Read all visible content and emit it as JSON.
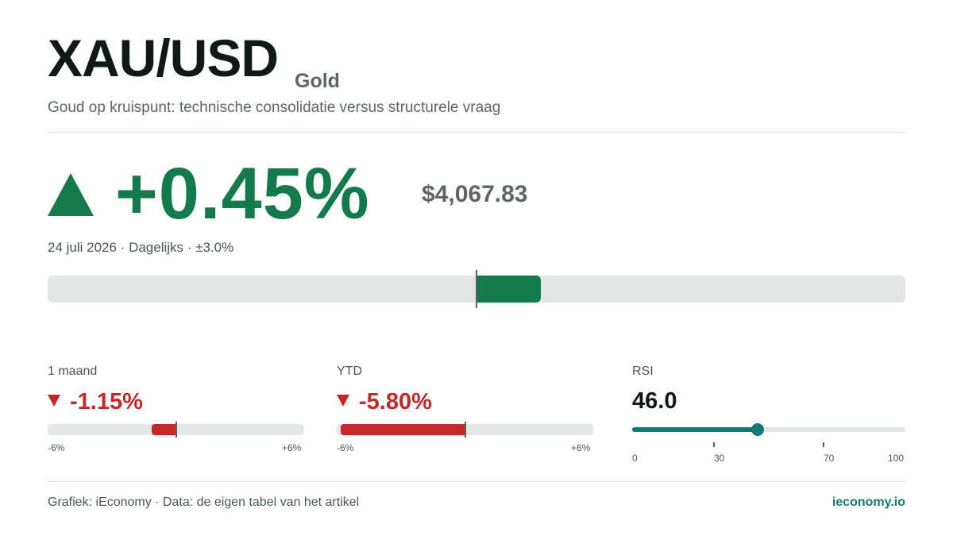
{
  "header": {
    "title": "XAU/USD",
    "asset": "Gold",
    "subtitle": "Goud op kruispunt: technische consolidatie versus structurele vraag"
  },
  "summary": {
    "change": "+0.45%",
    "price": "$4,067.83",
    "meta": "24 juli 2026 · Dagelijks · ±3.0%"
  },
  "chart_data": [
    {
      "type": "bar",
      "name_shown": "",
      "values": [
        0.45
      ],
      "xlim": [
        -3.0,
        3.0
      ],
      "unit": "%",
      "color": "#137a4c"
    },
    {
      "type": "bar",
      "label": "1 maand",
      "display": "-1.15%",
      "values": [
        -1.15
      ],
      "xlim": [
        -6,
        6
      ],
      "tick_min": "-6%",
      "tick_max": "+6%",
      "color": "#c62828"
    },
    {
      "type": "bar",
      "label": "YTD",
      "display": "-5.80%",
      "values": [
        -5.8
      ],
      "xlim": [
        -6,
        6
      ],
      "tick_min": "-6%",
      "tick_max": "+6%",
      "color": "#c62828"
    },
    {
      "type": "gauge",
      "label": "RSI",
      "display": "46.0",
      "values": [
        46.0
      ],
      "xlim": [
        0,
        100
      ],
      "ticks": [
        "0",
        "30",
        "70",
        "100"
      ],
      "tick_values": [
        0,
        30,
        70,
        100
      ],
      "color": "#117a73"
    }
  ],
  "footer": {
    "source": "Grafiek: iEconomy · Data: de eigen tabel van het artikel",
    "brand": "ieconomy.io"
  },
  "colors": {
    "positive": "#137a4c",
    "negative": "#c62828",
    "accent": "#117a73"
  },
  "icons": {
    "up": "triangle-up-icon",
    "down": "triangle-down-icon"
  }
}
